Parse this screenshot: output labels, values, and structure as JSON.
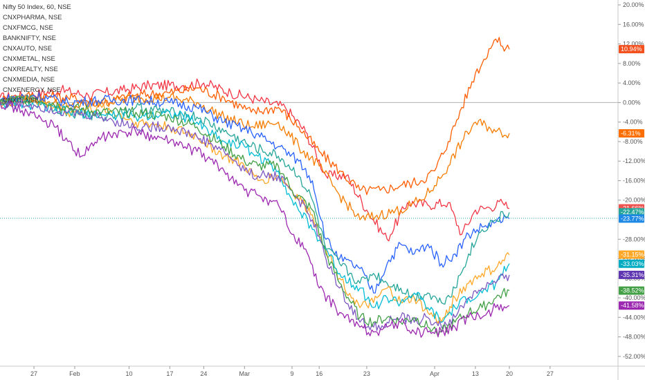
{
  "chart_data": {
    "type": "line",
    "legend": [
      "Nifty 50 Index, 60, NSE",
      "CNXPHARMA, NSE",
      "CNXFMCG, NSE",
      "BANKNIFTY, NSE",
      "CNXAUTO, NSE",
      "CNXMETAL, NSE",
      "CNXREALTY, NSE",
      "CNXMEDIA, NSE",
      "CNXENERGY, NSE",
      "CNXIT, NSE"
    ],
    "y_axis": {
      "unit": "%",
      "ylim": [
        -54,
        21
      ],
      "ticks": [
        20,
        16,
        12,
        8,
        4,
        0,
        -4,
        -8,
        -12,
        -16,
        -20,
        -28,
        -32,
        -36,
        -40,
        -44,
        -48,
        -52
      ],
      "tick_labels": [
        "20.00%",
        "16.00%",
        "12.00%",
        "8.00%",
        "4.00%",
        "0.00%",
        "-4.00%",
        "-8.00%",
        "-12.00%",
        "-16.00%",
        "-20.00%",
        "-28.00%",
        "-32.00%",
        "-36.00%",
        "-40.00%",
        "-44.00%",
        "-48.00%",
        "-52.00%"
      ]
    },
    "x_axis": {
      "xlim": [
        0,
        91
      ],
      "ticks": [
        5,
        11,
        19,
        25,
        30,
        36,
        43,
        47,
        54,
        64,
        70,
        75,
        81
      ],
      "tick_labels": [
        "27",
        "Feb",
        "10",
        "17",
        "24",
        "Mar",
        "9",
        "16",
        "23",
        "Apr",
        "13",
        "20",
        "27"
      ]
    },
    "zero_line": 0,
    "reference_line": -23.7,
    "series": [
      {
        "color": "#f23645",
        "end_label": "-21.66%",
        "points": [
          [
            0,
            1
          ],
          [
            4,
            1.5
          ],
          [
            9,
            2.5
          ],
          [
            13,
            1.5
          ],
          [
            18,
            2.5
          ],
          [
            22,
            3.5
          ],
          [
            27,
            3.5
          ],
          [
            30,
            4
          ],
          [
            34,
            2
          ],
          [
            38,
            0.5
          ],
          [
            42,
            -1
          ],
          [
            45,
            -6
          ],
          [
            48,
            -15
          ],
          [
            51,
            -15
          ],
          [
            54,
            -22
          ],
          [
            57,
            -28
          ],
          [
            60,
            -20.5
          ],
          [
            63,
            -21
          ],
          [
            66,
            -20.5
          ],
          [
            68,
            -27
          ],
          [
            70,
            -22
          ],
          [
            72,
            -21.5
          ],
          [
            74,
            -20.5
          ],
          [
            75,
            -21.7
          ]
        ]
      },
      {
        "color": "#ff5d00",
        "end_label": "10.94%",
        "points": [
          [
            0,
            0.5
          ],
          [
            5,
            1.5
          ],
          [
            10,
            1
          ],
          [
            15,
            0
          ],
          [
            20,
            1.5
          ],
          [
            25,
            2
          ],
          [
            29,
            3
          ],
          [
            33,
            1
          ],
          [
            37,
            -2
          ],
          [
            41,
            -1
          ],
          [
            44,
            -5
          ],
          [
            47,
            -10
          ],
          [
            50,
            -14
          ],
          [
            53,
            -18
          ],
          [
            56,
            -18
          ],
          [
            59,
            -17
          ],
          [
            62,
            -16
          ],
          [
            64,
            -14
          ],
          [
            66,
            -8
          ],
          [
            68,
            -1
          ],
          [
            70,
            6
          ],
          [
            71,
            8
          ],
          [
            72,
            11
          ],
          [
            73,
            13
          ],
          [
            74,
            11.5
          ],
          [
            75,
            10.9
          ]
        ]
      },
      {
        "color": "#f57c00",
        "end_label": "-6.31%",
        "points": [
          [
            0,
            0
          ],
          [
            5,
            1
          ],
          [
            10,
            -1
          ],
          [
            15,
            0
          ],
          [
            20,
            1
          ],
          [
            25,
            1
          ],
          [
            29,
            0
          ],
          [
            33,
            -3
          ],
          [
            37,
            -5
          ],
          [
            41,
            -4
          ],
          [
            44,
            -9
          ],
          [
            47,
            -13
          ],
          [
            50,
            -19
          ],
          [
            53,
            -24
          ],
          [
            56,
            -23
          ],
          [
            59,
            -22
          ],
          [
            62,
            -20
          ],
          [
            64,
            -17
          ],
          [
            66,
            -13
          ],
          [
            68,
            -8
          ],
          [
            70,
            -4
          ],
          [
            72,
            -5
          ],
          [
            73,
            -6
          ],
          [
            75,
            -6.3
          ]
        ]
      },
      {
        "color": "#2962ff",
        "end_label": "-23.77%",
        "points": [
          [
            0,
            0.5
          ],
          [
            5,
            1.5
          ],
          [
            10,
            0
          ],
          [
            15,
            0.5
          ],
          [
            20,
            0.5
          ],
          [
            25,
            0
          ],
          [
            29,
            -1
          ],
          [
            33,
            -4
          ],
          [
            37,
            -6
          ],
          [
            41,
            -9
          ],
          [
            44,
            -12
          ],
          [
            46,
            -16
          ],
          [
            48,
            -28
          ],
          [
            50,
            -32
          ],
          [
            53,
            -34
          ],
          [
            55,
            -39
          ],
          [
            57,
            -33
          ],
          [
            59,
            -29
          ],
          [
            61,
            -31
          ],
          [
            63,
            -29
          ],
          [
            65,
            -33
          ],
          [
            67,
            -31
          ],
          [
            69,
            -27
          ],
          [
            71,
            -25.5
          ],
          [
            73,
            -24.5
          ],
          [
            75,
            -23.8
          ]
        ]
      },
      {
        "color": "#26a69a",
        "end_label": "-22.47%",
        "points": [
          [
            0,
            0
          ],
          [
            5,
            0.5
          ],
          [
            10,
            -2
          ],
          [
            15,
            -3
          ],
          [
            20,
            -1
          ],
          [
            25,
            -2
          ],
          [
            29,
            -3
          ],
          [
            33,
            -6
          ],
          [
            37,
            -9
          ],
          [
            41,
            -11
          ],
          [
            44,
            -15
          ],
          [
            46,
            -20
          ],
          [
            48,
            -30
          ],
          [
            50,
            -33
          ],
          [
            53,
            -37
          ],
          [
            55,
            -35
          ],
          [
            57,
            -37
          ],
          [
            59,
            -38
          ],
          [
            61,
            -40
          ],
          [
            63,
            -39
          ],
          [
            65,
            -41
          ],
          [
            67,
            -38
          ],
          [
            69,
            -31
          ],
          [
            71,
            -26
          ],
          [
            73,
            -24
          ],
          [
            75,
            -22.5
          ]
        ]
      },
      {
        "color": "#ffa726",
        "end_label": "-31.15%",
        "points": [
          [
            0,
            0
          ],
          [
            5,
            0.5
          ],
          [
            10,
            -2
          ],
          [
            15,
            -1
          ],
          [
            20,
            -4
          ],
          [
            25,
            -5
          ],
          [
            29,
            -7
          ],
          [
            33,
            -11
          ],
          [
            36,
            -13
          ],
          [
            38,
            -16
          ],
          [
            41,
            -15
          ],
          [
            43,
            -18
          ],
          [
            46,
            -23
          ],
          [
            48,
            -30
          ],
          [
            50,
            -36
          ],
          [
            53,
            -42
          ],
          [
            55,
            -41
          ],
          [
            57,
            -38
          ],
          [
            59,
            -41
          ],
          [
            61,
            -40
          ],
          [
            63,
            -43
          ],
          [
            65,
            -45
          ],
          [
            67,
            -40
          ],
          [
            69,
            -37
          ],
          [
            71,
            -35
          ],
          [
            73,
            -34
          ],
          [
            75,
            -31.2
          ]
        ]
      },
      {
        "color": "#00bcd4",
        "end_label": "-33.03%",
        "points": [
          [
            0,
            0
          ],
          [
            5,
            -0.5
          ],
          [
            10,
            -2
          ],
          [
            15,
            -2.5
          ],
          [
            20,
            -3
          ],
          [
            25,
            -2
          ],
          [
            29,
            -4
          ],
          [
            33,
            -8
          ],
          [
            36,
            -9
          ],
          [
            38,
            -11
          ],
          [
            41,
            -14
          ],
          [
            43,
            -20
          ],
          [
            46,
            -26
          ],
          [
            48,
            -30
          ],
          [
            50,
            -35
          ],
          [
            53,
            -38
          ],
          [
            55,
            -42
          ],
          [
            57,
            -40
          ],
          [
            59,
            -41
          ],
          [
            61,
            -39
          ],
          [
            63,
            -42
          ],
          [
            65,
            -45
          ],
          [
            67,
            -42
          ],
          [
            69,
            -40
          ],
          [
            71,
            -39
          ],
          [
            73,
            -37
          ],
          [
            75,
            -33
          ]
        ]
      },
      {
        "color": "#7e57c2",
        "end_label": "-35.31%",
        "points": [
          [
            0,
            0
          ],
          [
            5,
            -0.5
          ],
          [
            10,
            -2
          ],
          [
            15,
            -3
          ],
          [
            20,
            -5
          ],
          [
            25,
            -5
          ],
          [
            29,
            -7
          ],
          [
            33,
            -10
          ],
          [
            36,
            -14
          ],
          [
            38,
            -15
          ],
          [
            41,
            -15
          ],
          [
            43,
            -18
          ],
          [
            46,
            -24
          ],
          [
            48,
            -32
          ],
          [
            50,
            -38
          ],
          [
            53,
            -45
          ],
          [
            55,
            -46
          ],
          [
            57,
            -45
          ],
          [
            59,
            -44
          ],
          [
            61,
            -45
          ],
          [
            63,
            -44
          ],
          [
            65,
            -46
          ],
          [
            67,
            -44
          ],
          [
            69,
            -40
          ],
          [
            71,
            -38
          ],
          [
            73,
            -37
          ],
          [
            75,
            -35.3
          ]
        ]
      },
      {
        "color": "#43a047",
        "end_label": "-38.52%",
        "points": [
          [
            0,
            0
          ],
          [
            5,
            1
          ],
          [
            10,
            -1
          ],
          [
            15,
            -2
          ],
          [
            20,
            -2
          ],
          [
            25,
            -3
          ],
          [
            29,
            -5
          ],
          [
            33,
            -9
          ],
          [
            36,
            -12
          ],
          [
            38,
            -13
          ],
          [
            41,
            -13
          ],
          [
            43,
            -18
          ],
          [
            46,
            -22
          ],
          [
            48,
            -31
          ],
          [
            50,
            -37
          ],
          [
            53,
            -44
          ],
          [
            55,
            -45
          ],
          [
            57,
            -44
          ],
          [
            59,
            -45
          ],
          [
            61,
            -44
          ],
          [
            63,
            -46
          ],
          [
            65,
            -47
          ],
          [
            67,
            -45
          ],
          [
            69,
            -43
          ],
          [
            71,
            -42
          ],
          [
            73,
            -40
          ],
          [
            75,
            -38.5
          ]
        ]
      },
      {
        "color": "#9c27b0",
        "end_label": "-41.58%",
        "points": [
          [
            0,
            0
          ],
          [
            4,
            -2
          ],
          [
            8,
            -5
          ],
          [
            10,
            -8
          ],
          [
            12,
            -11
          ],
          [
            15,
            -7
          ],
          [
            20,
            -6
          ],
          [
            25,
            -8
          ],
          [
            29,
            -10
          ],
          [
            33,
            -14
          ],
          [
            36,
            -18
          ],
          [
            38,
            -19
          ],
          [
            41,
            -21
          ],
          [
            43,
            -27
          ],
          [
            45,
            -30
          ],
          [
            47,
            -38
          ],
          [
            50,
            -43
          ],
          [
            53,
            -46
          ],
          [
            55,
            -47
          ],
          [
            57,
            -46
          ],
          [
            59,
            -45
          ],
          [
            61,
            -47
          ],
          [
            63,
            -47
          ],
          [
            65,
            -47
          ],
          [
            67,
            -46
          ],
          [
            69,
            -44
          ],
          [
            71,
            -44
          ],
          [
            73,
            -42
          ],
          [
            75,
            -41.6
          ]
        ]
      }
    ],
    "badges": [
      {
        "label": "10.94%",
        "value": 10.94,
        "color": "#f4511e"
      },
      {
        "label": "-6.31%",
        "value": -6.31,
        "color": "#ff6f00"
      },
      {
        "label": "-21.66%",
        "value": -21.66,
        "color": "#ef5350"
      },
      {
        "label": "-22.47%",
        "value": -22.47,
        "color": "#26a69a"
      },
      {
        "label": "-23.77%",
        "value": -23.77,
        "color": "#1e88e5"
      },
      {
        "label": "-31.15%",
        "value": -31.15,
        "color": "#ffa726"
      },
      {
        "label": "-33.03%",
        "value": -33.03,
        "color": "#00acc1"
      },
      {
        "label": "-35.31%",
        "value": -35.31,
        "color": "#5e35b1"
      },
      {
        "label": "-38.52%",
        "value": -38.52,
        "color": "#43a047"
      },
      {
        "label": "-41.58%",
        "value": -41.58,
        "color": "#9c27b0"
      }
    ]
  }
}
